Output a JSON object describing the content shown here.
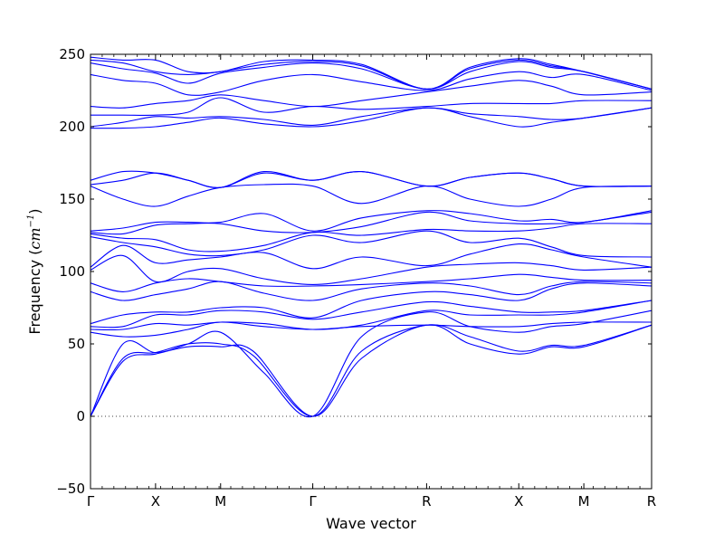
{
  "chart_data": {
    "type": "line",
    "title": "",
    "xlabel": "Wave vector",
    "ylabel_text": "Frequency (",
    "ylabel_unit": "cm",
    "ylabel_exp": "−1",
    "ylabel_close": ")",
    "ylim": [
      -50,
      250
    ],
    "yticks": [
      -50,
      0,
      50,
      100,
      150,
      200,
      250
    ],
    "ytick_labels": [
      "−50",
      "0",
      "50",
      "100",
      "150",
      "200",
      "250"
    ],
    "xlim": [
      0,
      10.35
    ],
    "path_points": [
      {
        "label": "Γ",
        "x": 0
      },
      {
        "label": "X",
        "x": 1.2
      },
      {
        "label": "M",
        "x": 2.4
      },
      {
        "label": "Γ",
        "x": 4.1
      },
      {
        "label": "R",
        "x": 6.2
      },
      {
        "label": "X",
        "x": 7.9
      },
      {
        "label": "M",
        "x": 9.1
      },
      {
        "label": "R",
        "x": 10.35
      }
    ],
    "zero_line": {
      "y": 0,
      "style": "dotted"
    },
    "line_color": "#0000ff",
    "series": [
      {
        "x": [
          0,
          0.6,
          1.2,
          1.8,
          2.4,
          3.0,
          4.1,
          5.0,
          6.2,
          7.0,
          7.9,
          8.5,
          9.1,
          10.35
        ],
        "values": [
          0,
          38,
          43,
          48,
          48,
          45,
          0,
          40,
          63,
          50,
          43,
          48,
          48,
          63
        ]
      },
      {
        "x": [
          0,
          0.6,
          1.2,
          1.8,
          2.4,
          3.0,
          4.1,
          5.0,
          6.2,
          7.0,
          7.9,
          8.5,
          9.1,
          10.35
        ],
        "values": [
          0,
          40,
          44,
          50,
          50,
          42,
          0,
          45,
          63,
          55,
          45,
          49,
          49,
          63
        ]
      },
      {
        "x": [
          0,
          0.6,
          1.2,
          1.8,
          2.4,
          3.2,
          4.1,
          5.0,
          6.2,
          7.0,
          7.9,
          8.5,
          9.1,
          10.35
        ],
        "values": [
          0,
          50,
          44,
          50,
          58,
          30,
          0,
          55,
          72,
          62,
          58,
          62,
          64,
          73
        ]
      },
      {
        "x": [
          0,
          0.6,
          1.2,
          1.8,
          2.4,
          3.2,
          4.1,
          5.0,
          6.2,
          7.0,
          7.9,
          8.5,
          9.1,
          10.35
        ],
        "values": [
          58,
          55,
          56,
          60,
          65,
          62,
          60,
          62,
          63,
          62,
          62,
          64,
          65,
          65
        ]
      },
      {
        "x": [
          0,
          0.6,
          1.2,
          1.8,
          2.4,
          3.2,
          4.1,
          5.0,
          6.2,
          7.0,
          7.9,
          8.5,
          9.1,
          10.35
        ],
        "values": [
          60,
          60,
          64,
          63,
          65,
          64,
          60,
          63,
          73,
          70,
          70,
          70,
          72,
          80
        ]
      },
      {
        "x": [
          0,
          0.6,
          1.2,
          1.8,
          2.4,
          3.2,
          4.1,
          5.0,
          6.2,
          7.0,
          7.9,
          8.5,
          9.1,
          10.35
        ],
        "values": [
          62,
          62,
          70,
          70,
          73,
          72,
          67,
          72,
          79,
          76,
          72,
          72,
          73,
          80
        ]
      },
      {
        "x": [
          0,
          0.6,
          1.2,
          1.8,
          2.4,
          3.2,
          4.1,
          5.0,
          6.2,
          7.0,
          7.9,
          8.5,
          9.1,
          10.35
        ],
        "values": [
          64,
          70,
          72,
          72,
          75,
          75,
          68,
          80,
          86,
          84,
          80,
          88,
          92,
          90
        ]
      },
      {
        "x": [
          0,
          0.6,
          1.2,
          1.8,
          2.4,
          3.2,
          4.1,
          5.0,
          6.2,
          7.0,
          7.9,
          8.5,
          9.1,
          10.35
        ],
        "values": [
          86,
          80,
          84,
          88,
          93,
          85,
          80,
          88,
          92,
          90,
          84,
          90,
          93,
          92
        ]
      },
      {
        "x": [
          0,
          0.6,
          1.2,
          1.8,
          2.4,
          3.2,
          4.1,
          5.0,
          6.2,
          7.0,
          7.9,
          8.5,
          9.1,
          10.35
        ],
        "values": [
          92,
          86,
          92,
          95,
          93,
          90,
          90,
          91,
          93,
          95,
          98,
          96,
          94,
          94
        ]
      },
      {
        "x": [
          0,
          0.6,
          1.2,
          1.8,
          2.4,
          3.2,
          4.1,
          5.0,
          6.2,
          7.0,
          7.9,
          8.5,
          9.1,
          10.35
        ],
        "values": [
          101,
          111,
          93,
          100,
          102,
          95,
          91,
          95,
          103,
          105,
          106,
          104,
          101,
          103
        ]
      },
      {
        "x": [
          0,
          0.6,
          1.2,
          1.8,
          2.4,
          3.2,
          4.1,
          5.0,
          6.2,
          7.0,
          7.9,
          8.5,
          9.1,
          10.35
        ],
        "values": [
          103,
          118,
          106,
          108,
          110,
          113,
          102,
          110,
          104,
          112,
          119,
          115,
          110,
          103
        ]
      },
      {
        "x": [
          0,
          0.6,
          1.2,
          1.8,
          2.4,
          3.2,
          4.1,
          5.0,
          6.2,
          7.0,
          7.9,
          8.5,
          9.1,
          10.35
        ],
        "values": [
          124,
          120,
          117,
          112,
          111,
          115,
          125,
          120,
          128,
          120,
          123,
          117,
          111,
          110
        ]
      },
      {
        "x": [
          0,
          0.6,
          1.2,
          1.8,
          2.4,
          3.2,
          4.1,
          5.0,
          6.2,
          7.0,
          7.9,
          8.5,
          9.1,
          10.35
        ],
        "values": [
          126,
          123,
          122,
          115,
          114,
          118,
          127,
          125,
          129,
          128,
          128,
          130,
          133,
          133
        ]
      },
      {
        "x": [
          0,
          0.6,
          1.2,
          1.8,
          2.4,
          3.2,
          4.1,
          5.0,
          6.2,
          7.0,
          7.9,
          8.5,
          9.1,
          10.35
        ],
        "values": [
          127,
          126,
          132,
          133,
          133,
          128,
          127,
          131,
          141,
          135,
          133,
          133,
          134,
          141
        ]
      },
      {
        "x": [
          0,
          0.6,
          1.2,
          1.8,
          2.4,
          3.2,
          4.1,
          5.0,
          6.2,
          7.0,
          7.9,
          8.5,
          9.1,
          10.35
        ],
        "values": [
          128,
          130,
          134,
          134,
          134,
          140,
          128,
          137,
          142,
          140,
          135,
          136,
          134,
          142
        ]
      },
      {
        "x": [
          0,
          0.6,
          1.2,
          1.8,
          2.4,
          3.2,
          4.1,
          5.0,
          6.2,
          7.0,
          7.9,
          8.5,
          9.1,
          10.35
        ],
        "values": [
          159,
          150,
          145,
          152,
          158,
          160,
          159,
          147,
          159,
          150,
          145,
          150,
          158,
          159
        ]
      },
      {
        "x": [
          0,
          0.6,
          1.2,
          1.8,
          2.4,
          3.2,
          4.1,
          5.0,
          6.2,
          7.0,
          7.9,
          8.5,
          9.1,
          10.35
        ],
        "values": [
          160,
          163,
          168,
          163,
          158,
          168,
          163,
          169,
          159,
          165,
          168,
          164,
          159,
          159
        ]
      },
      {
        "x": [
          0,
          0.6,
          1.2,
          1.8,
          2.4,
          3.2,
          4.1,
          5.0,
          6.2,
          7.0,
          7.9,
          8.5,
          9.1,
          10.35
        ],
        "values": [
          163,
          169,
          168,
          163,
          158,
          169,
          163,
          169,
          159,
          165,
          168,
          164,
          159,
          159
        ]
      },
      {
        "x": [
          0,
          0.6,
          1.2,
          1.8,
          2.4,
          3.2,
          4.1,
          5.0,
          6.2,
          7.0,
          7.9,
          8.5,
          9.1,
          10.35
        ],
        "values": [
          199,
          199,
          200,
          203,
          206,
          202,
          200,
          204,
          213,
          207,
          200,
          203,
          206,
          213
        ]
      },
      {
        "x": [
          0,
          0.6,
          1.2,
          1.8,
          2.4,
          3.2,
          4.1,
          5.0,
          6.2,
          7.0,
          7.9,
          8.5,
          9.1,
          10.35
        ],
        "values": [
          200,
          203,
          207,
          206,
          207,
          205,
          201,
          207,
          213,
          209,
          207,
          205,
          206,
          213
        ]
      },
      {
        "x": [
          0,
          0.6,
          1.2,
          1.8,
          2.4,
          3.2,
          4.1,
          5.0,
          6.2,
          7.0,
          7.9,
          8.5,
          9.1,
          10.35
        ],
        "values": [
          208,
          208,
          208,
          210,
          220,
          210,
          214,
          212,
          214,
          216,
          216,
          216,
          218,
          218
        ]
      },
      {
        "x": [
          0,
          0.6,
          1.2,
          1.8,
          2.4,
          3.2,
          4.1,
          5.0,
          6.2,
          7.0,
          7.9,
          8.5,
          9.1,
          10.35
        ],
        "values": [
          214,
          213,
          216,
          218,
          222,
          218,
          214,
          218,
          224,
          228,
          232,
          228,
          222,
          224
        ]
      },
      {
        "x": [
          0,
          0.6,
          1.2,
          1.8,
          2.4,
          3.2,
          4.1,
          5.0,
          6.2,
          7.0,
          7.9,
          8.5,
          9.1,
          10.35
        ],
        "values": [
          236,
          232,
          230,
          222,
          224,
          232,
          236,
          231,
          225,
          233,
          238,
          234,
          236,
          225
        ]
      },
      {
        "x": [
          0,
          0.6,
          1.2,
          1.8,
          2.4,
          3.2,
          4.1,
          5.0,
          6.2,
          7.0,
          7.9,
          8.5,
          9.1,
          10.35
        ],
        "values": [
          244,
          240,
          237,
          230,
          237,
          241,
          244,
          240,
          226,
          238,
          245,
          241,
          238,
          226
        ]
      },
      {
        "x": [
          0,
          0.6,
          1.2,
          1.8,
          2.4,
          3.2,
          4.1,
          5.0,
          6.2,
          7.0,
          7.9,
          8.5,
          9.1,
          10.35
        ],
        "values": [
          246,
          244,
          238,
          236,
          238,
          243,
          245,
          242,
          226,
          240,
          246,
          242,
          238,
          226
        ]
      },
      {
        "x": [
          0,
          0.6,
          1.2,
          1.8,
          2.4,
          3.2,
          4.1,
          5.0,
          6.2,
          7.0,
          7.9,
          8.5,
          9.1,
          10.35
        ],
        "values": [
          248,
          246,
          246,
          238,
          238,
          245,
          246,
          243,
          226,
          241,
          247,
          243,
          238,
          226
        ]
      }
    ]
  }
}
